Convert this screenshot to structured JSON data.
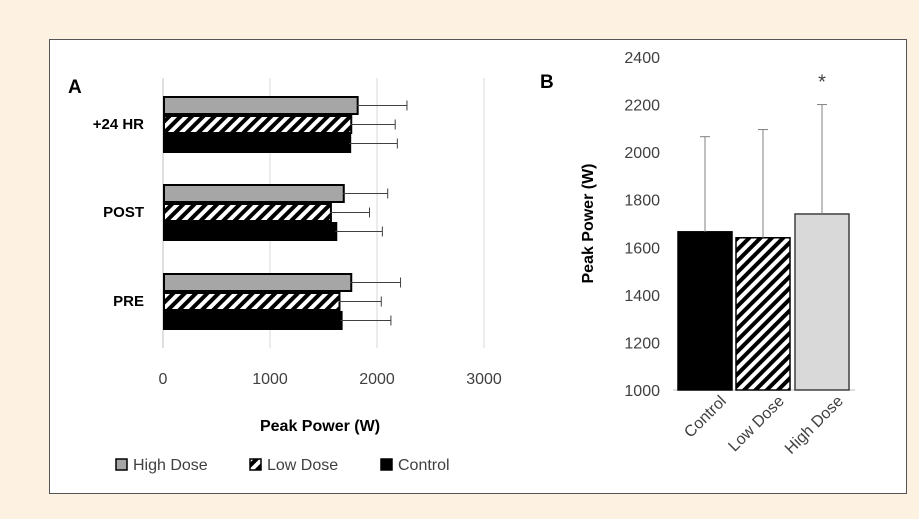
{
  "colors": {
    "high_dose": "#a6a6a6",
    "low_dose": "hatch",
    "control": "#000000",
    "b_high_dose": "#d9d9d9"
  },
  "chart_data": [
    {
      "panel": "A",
      "type": "bar",
      "orientation": "horizontal",
      "categories": [
        "+24 HR",
        "POST",
        "PRE"
      ],
      "series": [
        {
          "name": "High Dose",
          "values": [
            1810,
            1680,
            1750
          ],
          "error": [
            470,
            420,
            470
          ]
        },
        {
          "name": "Low Dose",
          "values": [
            1750,
            1560,
            1640
          ],
          "error": [
            420,
            370,
            400
          ]
        },
        {
          "name": "Control",
          "values": [
            1740,
            1610,
            1660
          ],
          "error": [
            450,
            440,
            470
          ]
        }
      ],
      "xlabel": "Peak Power (W)",
      "xlim": [
        0,
        3000
      ],
      "xticks": [
        "0",
        "1000",
        "2000",
        "3000"
      ],
      "grid": true,
      "legend": "bottom"
    },
    {
      "panel": "B",
      "type": "bar",
      "categories": [
        "Control",
        "Low Dose",
        "High Dose"
      ],
      "values": [
        1665,
        1640,
        1740
      ],
      "error": [
        400,
        455,
        460
      ],
      "ylabel": "Peak Power (W)",
      "ylim": [
        1000,
        2400
      ],
      "yticks": [
        "1000",
        "1200",
        "1400",
        "1600",
        "1800",
        "2000",
        "2200",
        "2400"
      ],
      "annotation": "*"
    }
  ]
}
